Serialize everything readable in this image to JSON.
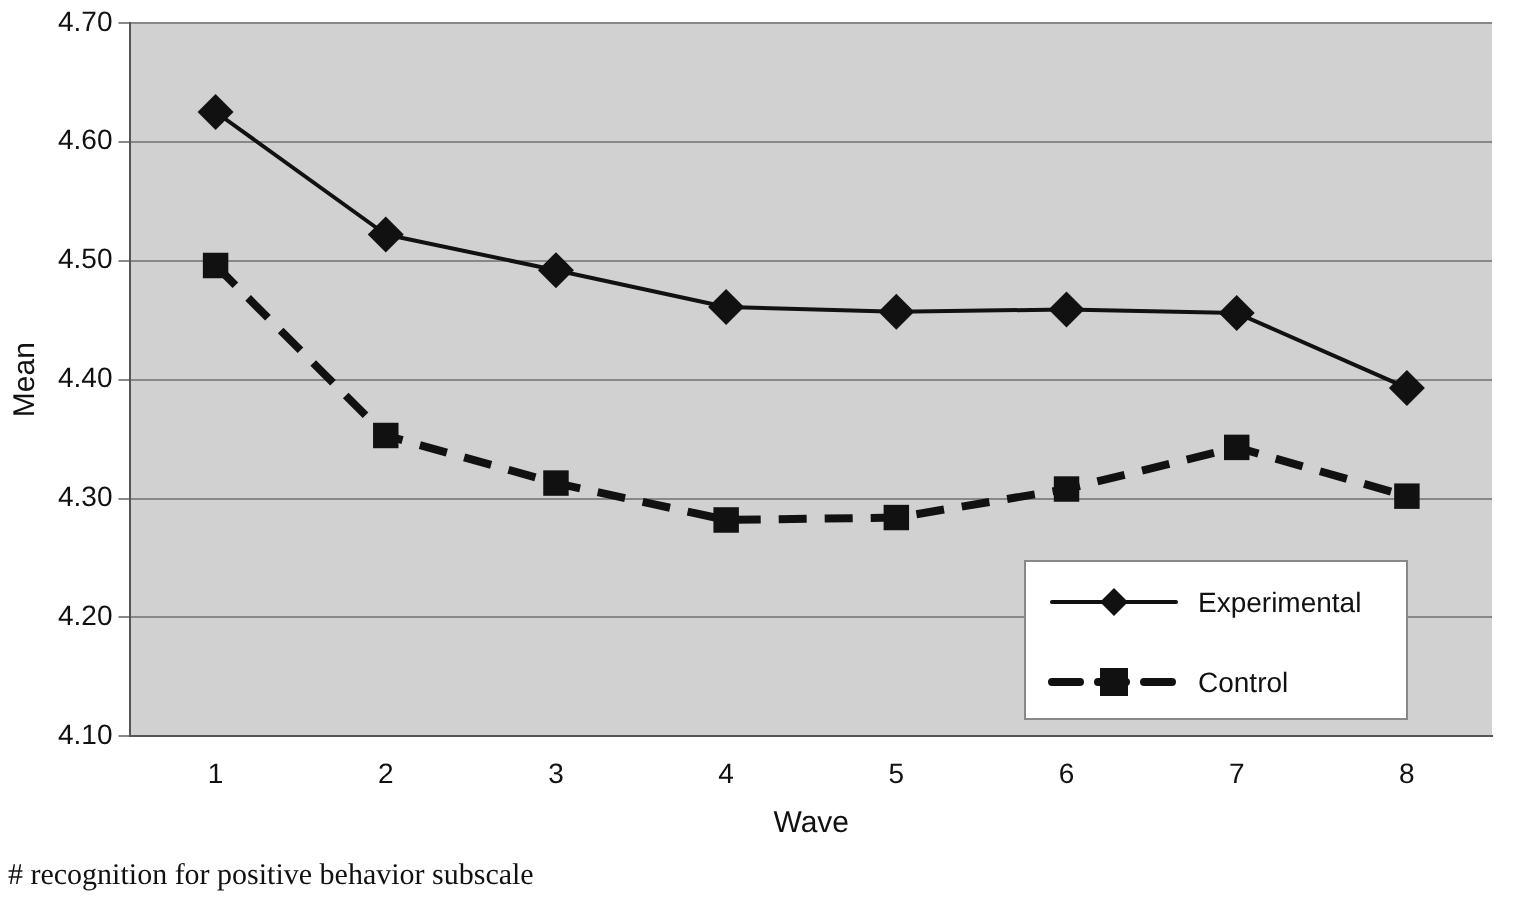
{
  "chart_data": {
    "type": "line",
    "xlabel": "Wave",
    "ylabel": "Mean",
    "categories": [
      "1",
      "2",
      "3",
      "4",
      "5",
      "6",
      "7",
      "8"
    ],
    "series": [
      {
        "name": "Experimental",
        "color": "#111111",
        "marker": "diamond",
        "line_style": "solid",
        "values": [
          4.625,
          4.522,
          4.492,
          4.461,
          4.457,
          4.459,
          4.456,
          4.393
        ]
      },
      {
        "name": "Control",
        "color": "#111111",
        "marker": "square",
        "line_style": "dashed",
        "values": [
          4.496,
          4.353,
          4.313,
          4.282,
          4.284,
          4.308,
          4.343,
          4.302
        ]
      }
    ],
    "ylim": [
      4.1,
      4.7
    ],
    "yticks": [
      {
        "value": 4.1,
        "label": "4.10"
      },
      {
        "value": 4.2,
        "label": "4.20"
      },
      {
        "value": 4.3,
        "label": "4.30"
      },
      {
        "value": 4.4,
        "label": "4.40"
      },
      {
        "value": 4.5,
        "label": "4.50"
      },
      {
        "value": 4.6,
        "label": "4.60"
      },
      {
        "value": 4.7,
        "label": "4.70"
      }
    ],
    "grid": "y",
    "legend": "bottom right",
    "annotations": [
      "# recognition for positive behavior subscale"
    ]
  }
}
